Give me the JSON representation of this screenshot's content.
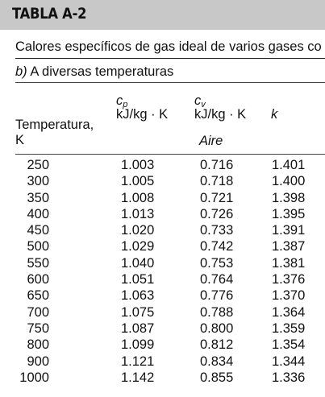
{
  "table_id": "TABLA A-2",
  "caption": "Calores específicos de gas ideal de varios gases co",
  "subcaption": {
    "letter": "b)",
    "text": " A diversas temperaturas"
  },
  "header": {
    "temperature_line1": "Temperatura,",
    "temperature_line2": "K",
    "cp_symbol": "c",
    "cp_subscript": "p",
    "cp_unit": "kJ/kg · K",
    "cv_symbol": "c",
    "cv_subscript": "v",
    "cv_unit": "kJ/kg · K",
    "k_symbol": "k",
    "gas": "Aire"
  },
  "rows": [
    {
      "temp": "250",
      "cp": "1.003",
      "cv": "0.716",
      "k": "1.401"
    },
    {
      "temp": "300",
      "cp": "1.005",
      "cv": "0.718",
      "k": "1.400"
    },
    {
      "temp": "350",
      "cp": "1.008",
      "cv": "0.721",
      "k": "1.398"
    },
    {
      "temp": "400",
      "cp": "1.013",
      "cv": "0.726",
      "k": "1.395"
    },
    {
      "temp": "450",
      "cp": "1.020",
      "cv": "0.733",
      "k": "1.391"
    },
    {
      "temp": "500",
      "cp": "1.029",
      "cv": "0.742",
      "k": "1.387"
    },
    {
      "temp": "550",
      "cp": "1.040",
      "cv": "0.753",
      "k": "1.381"
    },
    {
      "temp": "600",
      "cp": "1.051",
      "cv": "0.764",
      "k": "1.376"
    },
    {
      "temp": "650",
      "cp": "1.063",
      "cv": "0.776",
      "k": "1.370"
    },
    {
      "temp": "700",
      "cp": "1.075",
      "cv": "0.788",
      "k": "1.364"
    },
    {
      "temp": "750",
      "cp": "1.087",
      "cv": "0.800",
      "k": "1.359"
    },
    {
      "temp": "800",
      "cp": "1.099",
      "cv": "0.812",
      "k": "1.354"
    },
    {
      "temp": "900",
      "cp": "1.121",
      "cv": "0.834",
      "k": "1.344"
    },
    {
      "temp": "1000",
      "cp": "1.142",
      "cv": "0.855",
      "k": "1.336"
    }
  ]
}
